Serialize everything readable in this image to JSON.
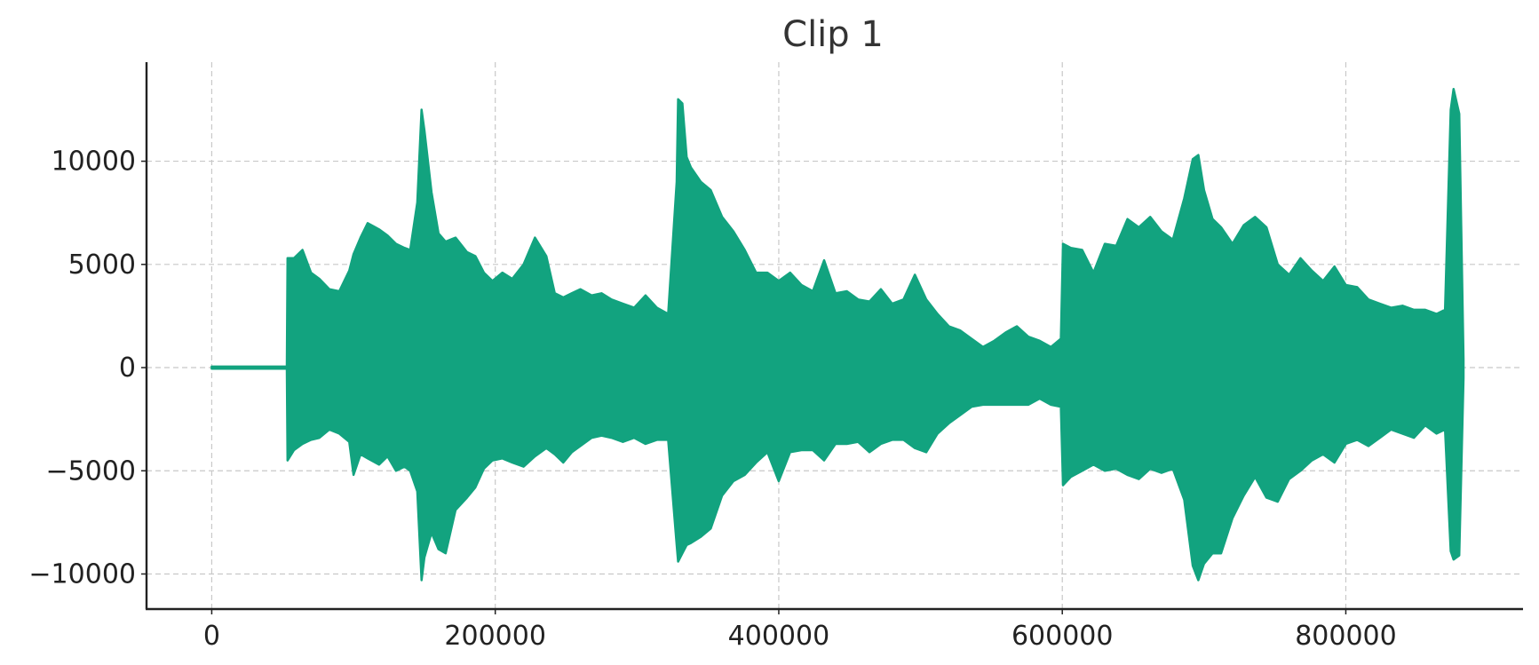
{
  "chart_data": {
    "type": "line",
    "title": "Clip 1",
    "xlabel": "",
    "ylabel": "",
    "xlim": [
      -46000,
      925000
    ],
    "ylim": [
      -11700,
      14800
    ],
    "grid": true,
    "x_ticks": [
      0,
      200000,
      400000,
      600000,
      800000
    ],
    "x_tick_labels": [
      "0",
      "200000",
      "400000",
      "600000",
      "800000"
    ],
    "y_ticks": [
      -10000,
      -5000,
      0,
      5000,
      10000
    ],
    "y_tick_labels": [
      "−10000",
      "−5000",
      "0",
      "5000",
      "10000"
    ],
    "series": [
      {
        "color": "#12a37f",
        "envelope_x": [
          0,
          53000,
          53500,
          58000,
          64000,
          70000,
          76000,
          83000,
          90000,
          97000,
          100000,
          105000,
          110000,
          118000,
          124000,
          130000,
          136000,
          140000,
          145000,
          148000,
          150000,
          155000,
          160000,
          165000,
          172000,
          180000,
          186000,
          192000,
          198000,
          205000,
          212000,
          220000,
          228000,
          236000,
          242000,
          248000,
          254000,
          260000,
          268000,
          275000,
          282000,
          290000,
          298000,
          306000,
          314000,
          322000,
          328000,
          329000,
          332000,
          335000,
          338000,
          345000,
          352000,
          360000,
          368000,
          376000,
          384000,
          392000,
          400000,
          408000,
          416000,
          424000,
          432000,
          440000,
          448000,
          456000,
          464000,
          472000,
          480000,
          488000,
          496000,
          504000,
          512000,
          520000,
          528000,
          536000,
          544000,
          552000,
          560000,
          568000,
          576000,
          584000,
          592000,
          599000,
          600500,
          606000,
          614000,
          622000,
          630000,
          638000,
          646000,
          654000,
          662000,
          670000,
          678000,
          686000,
          692000,
          696000,
          700000,
          706000,
          712000,
          720000,
          728000,
          736000,
          744000,
          752000,
          760000,
          768000,
          776000,
          784000,
          792000,
          800000,
          808000,
          816000,
          824000,
          832000,
          840000,
          848000,
          856000,
          864000,
          870000,
          874000,
          876000,
          880000,
          883000
        ],
        "envelope_upper": [
          50,
          50,
          5300,
          5300,
          5700,
          4600,
          4300,
          3800,
          3700,
          4700,
          5500,
          6300,
          7000,
          6700,
          6400,
          6000,
          5800,
          5700,
          8000,
          12500,
          11500,
          8500,
          6500,
          6100,
          6300,
          5600,
          5400,
          4600,
          4200,
          4600,
          4300,
          5000,
          6300,
          5400,
          3600,
          3400,
          3600,
          3800,
          3500,
          3600,
          3300,
          3100,
          2900,
          3500,
          2900,
          2600,
          9000,
          13000,
          12800,
          10200,
          9700,
          9000,
          8600,
          7300,
          6600,
          5700,
          4600,
          4600,
          4200,
          4600,
          4000,
          3700,
          5200,
          3600,
          3700,
          3300,
          3200,
          3800,
          3100,
          3300,
          4500,
          3300,
          2600,
          2000,
          1800,
          1400,
          1000,
          1300,
          1700,
          2000,
          1500,
          1300,
          1000,
          1400,
          6000,
          5800,
          5700,
          4600,
          6000,
          5900,
          7200,
          6800,
          7300,
          6600,
          6200,
          8200,
          10100,
          10300,
          8600,
          7200,
          6800,
          6000,
          6900,
          7300,
          6800,
          5000,
          4500,
          5300,
          4700,
          4200,
          4900,
          4000,
          3900,
          3300,
          3100,
          2900,
          3000,
          2800,
          2800,
          2600,
          2800,
          12500,
          13500,
          12300,
          400
        ],
        "envelope_lower": [
          -50,
          -50,
          -4500,
          -4000,
          -3700,
          -3500,
          -3400,
          -3000,
          -3200,
          -3600,
          -5200,
          -4200,
          -4400,
          -4700,
          -4300,
          -5000,
          -4800,
          -5000,
          -6000,
          -10300,
          -9200,
          -8000,
          -8800,
          -9000,
          -6900,
          -6300,
          -5800,
          -4900,
          -4500,
          -4400,
          -4600,
          -4800,
          -4300,
          -3900,
          -4200,
          -4600,
          -4100,
          -3800,
          -3400,
          -3300,
          -3400,
          -3600,
          -3400,
          -3700,
          -3500,
          -3500,
          -8600,
          -9400,
          -9000,
          -8600,
          -8500,
          -8200,
          -7800,
          -6200,
          -5500,
          -5200,
          -4600,
          -4100,
          -5500,
          -4100,
          -4000,
          -4000,
          -4500,
          -3700,
          -3700,
          -3600,
          -4100,
          -3700,
          -3500,
          -3500,
          -3900,
          -4100,
          -3200,
          -2700,
          -2300,
          -1900,
          -1800,
          -1800,
          -1800,
          -1800,
          -1800,
          -1500,
          -1800,
          -1900,
          -5700,
          -5300,
          -5000,
          -4700,
          -5000,
          -4900,
          -5200,
          -5400,
          -4900,
          -5100,
          -4900,
          -6400,
          -9600,
          -10300,
          -9500,
          -9000,
          -9000,
          -7300,
          -6200,
          -5300,
          -6300,
          -6500,
          -5400,
          -5000,
          -4500,
          -4200,
          -4600,
          -3700,
          -3500,
          -3800,
          -3400,
          -3000,
          -3200,
          -3400,
          -2800,
          -3200,
          -3000,
          -8900,
          -9300,
          -9100,
          -500
        ]
      }
    ]
  }
}
